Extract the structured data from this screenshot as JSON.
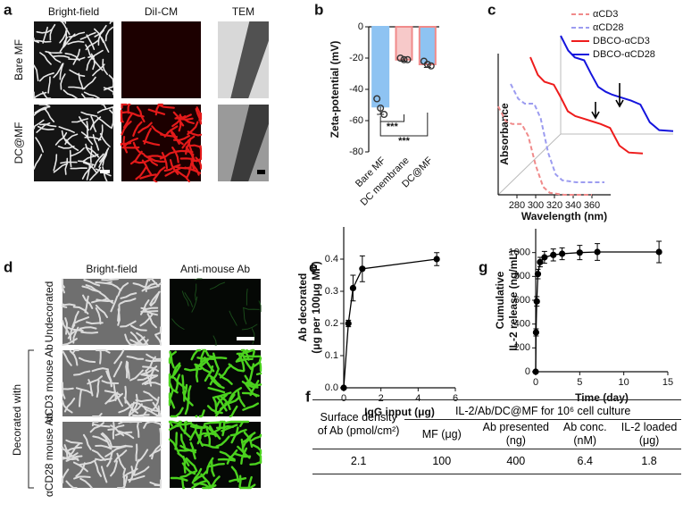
{
  "panel_labels": [
    "a",
    "b",
    "c",
    "d",
    "e",
    "f",
    "g"
  ],
  "panel_a": {
    "col_headers": [
      "Bright-field",
      "DiI-CM",
      "TEM"
    ],
    "row_labels": [
      "Bare MF",
      "DC@MF"
    ]
  },
  "panel_d": {
    "col_headers": [
      "Bright-field",
      "Anti-mouse Ab"
    ],
    "row_labels": [
      "Undecorated",
      "αCD3 mouse Ab",
      "αCD28 mouse Ab"
    ],
    "group_label": "Decorated with"
  },
  "chart_data": [
    {
      "type": "bar",
      "ylabel": "Zeta-potential (mV)",
      "categories": [
        "Bare MF",
        "DC membrane",
        "DC@MF"
      ],
      "values": [
        -51,
        -21,
        -24
      ],
      "errors": [
        5,
        1,
        2
      ],
      "points": [
        [
          -46,
          -52,
          -56
        ],
        [
          -20,
          -21,
          -21
        ],
        [
          -22,
          -24,
          -25
        ]
      ],
      "colors": [
        "#8ec3f2",
        "#f7c9c9",
        "#8ec3f2"
      ],
      "edgecolors": [
        "#8ec3f2",
        "#f08a8a",
        "#f08a8a"
      ],
      "ylim": [
        -80,
        0
      ],
      "yticks": [
        -80,
        -60,
        -40,
        -20,
        0
      ],
      "annotations": [
        "***",
        "***"
      ]
    },
    {
      "type": "line",
      "xlabel": "Wavelength (nm)",
      "ylabel": "Absorbance",
      "xlim": [
        260,
        380
      ],
      "xticks": [
        280,
        300,
        320,
        340,
        360
      ],
      "ylim": [
        0,
        1
      ],
      "series": [
        {
          "name": "αCD3",
          "color": "#f08a8a",
          "linestyle": "dashed",
          "x": [
            260,
            268,
            275,
            285,
            292,
            300,
            308,
            315,
            330,
            360
          ],
          "values": [
            0.9,
            0.75,
            0.72,
            0.72,
            0.6,
            0.3,
            0.08,
            0.02,
            0,
            0
          ]
        },
        {
          "name": "αCD28",
          "color": "#9c9cf0",
          "linestyle": "dashed",
          "x": [
            260,
            268,
            275,
            285,
            292,
            300,
            308,
            315,
            330,
            360
          ],
          "values": [
            1.0,
            0.85,
            0.8,
            0.8,
            0.65,
            0.3,
            0.08,
            0.02,
            0,
            0
          ]
        },
        {
          "name": "DBCO-αCD3",
          "color": "#ee1c1c",
          "linestyle": "solid",
          "x": [
            260,
            268,
            275,
            285,
            292,
            300,
            308,
            315,
            325,
            335,
            345,
            355,
            365,
            380
          ],
          "values": [
            1.0,
            0.82,
            0.75,
            0.72,
            0.6,
            0.45,
            0.4,
            0.38,
            0.35,
            0.32,
            0.28,
            0.1,
            0.03,
            0.02
          ]
        },
        {
          "name": "DBCO-αCD28",
          "color": "#1515dd",
          "linestyle": "solid",
          "x": [
            260,
            268,
            275,
            285,
            292,
            300,
            308,
            315,
            325,
            335,
            345,
            355,
            365,
            380
          ],
          "values": [
            1.0,
            0.85,
            0.78,
            0.75,
            0.62,
            0.48,
            0.43,
            0.4,
            0.37,
            0.34,
            0.3,
            0.12,
            0.04,
            0.03
          ]
        }
      ]
    },
    {
      "type": "errorline",
      "xlabel": "IgG input (μg)",
      "ylabel": [
        "Ab decorated",
        "(μg per 100μg MF)"
      ],
      "x": [
        0,
        0.25,
        0.5,
        1,
        5
      ],
      "values": [
        0,
        0.2,
        0.31,
        0.37,
        0.4
      ],
      "errors": [
        0,
        0.01,
        0.04,
        0.04,
        0.02
      ],
      "color": "#000000",
      "xlim": [
        0,
        6
      ],
      "xticks": [
        0,
        2,
        4,
        6
      ],
      "ylim": [
        0,
        0.5
      ],
      "yticks": [
        {
          "value": 0,
          "label": "0.0"
        },
        0.1,
        0.2,
        0.3,
        0.4
      ]
    },
    {
      "type": "errorline",
      "xlabel": "Time (day)",
      "ylabel": [
        "Cumulative",
        "IL-2 release (ng/mL)"
      ],
      "x": [
        0,
        0.04,
        0.125,
        0.25,
        0.5,
        1,
        2,
        3,
        5,
        7,
        14
      ],
      "values": [
        0,
        330,
        590,
        820,
        920,
        960,
        980,
        990,
        1000,
        1005,
        1005
      ],
      "errors": [
        0,
        30,
        40,
        40,
        40,
        50,
        50,
        50,
        60,
        70,
        90
      ],
      "color": "#000000",
      "xlim": [
        0,
        15
      ],
      "xticks": [
        0,
        5,
        10,
        15
      ],
      "ylim": [
        0,
        1200
      ],
      "yticks": [
        0,
        200,
        400,
        600,
        800,
        1000
      ]
    }
  ],
  "table": {
    "row_header": "Surface density of Ab (pmol/cm²)",
    "group": "IL-2/Ab/DC@MF for 10⁶ cell culture",
    "columns": [
      "MF (μg)",
      "Ab presented (ng)",
      "Ab conc. (nM)",
      "IL-2 loaded (μg)"
    ],
    "rows": [
      [
        2.1,
        100,
        400,
        6.4,
        1.8
      ]
    ]
  }
}
